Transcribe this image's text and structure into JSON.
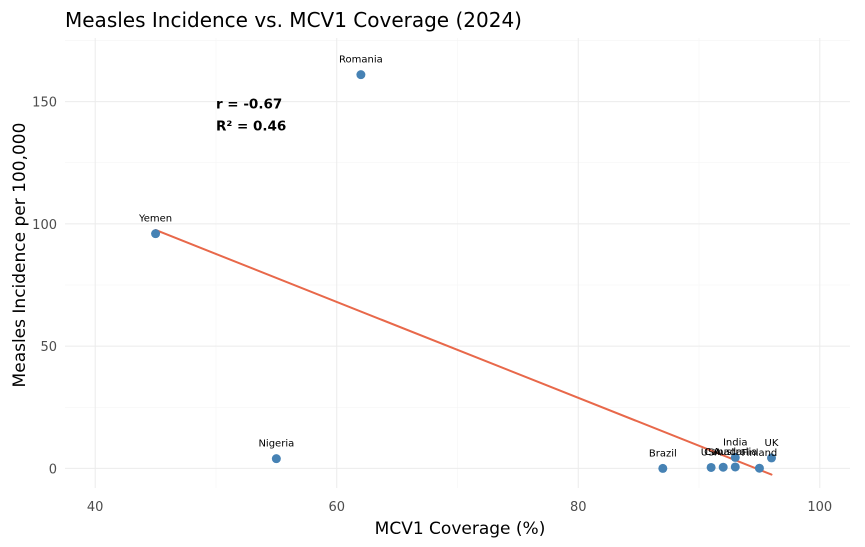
{
  "chart_data": {
    "type": "scatter",
    "title": "Measles Incidence vs. MCV1 Coverage (2024)",
    "xlabel": "MCV1 Coverage (%)",
    "ylabel": "Measles Incidence per 100,000",
    "xlim": [
      37.5,
      102.5
    ],
    "ylim": [
      -8,
      176
    ],
    "x_ticks": [
      40,
      60,
      80,
      100
    ],
    "y_ticks": [
      0,
      50,
      100,
      150
    ],
    "grid": true,
    "points": [
      {
        "label": "Romania",
        "x": 62,
        "y": 161
      },
      {
        "label": "Yemen",
        "x": 45,
        "y": 96
      },
      {
        "label": "Nigeria",
        "x": 55,
        "y": 4
      },
      {
        "label": "Brazil",
        "x": 87,
        "y": 0
      },
      {
        "label": "USA",
        "x": 91,
        "y": 0.4
      },
      {
        "label": "Canada",
        "x": 92,
        "y": 0.5
      },
      {
        "label": "Australia",
        "x": 93,
        "y": 0.6
      },
      {
        "label": "India",
        "x": 93,
        "y": 4.5
      },
      {
        "label": "Finland",
        "x": 95,
        "y": 0.1
      },
      {
        "label": "UK",
        "x": 96,
        "y": 4.3
      }
    ],
    "trendline": {
      "x": [
        45,
        96
      ],
      "y": [
        97.5,
        -2.5
      ]
    },
    "annotations": [
      "r = -0.67",
      "R² = 0.46"
    ],
    "colors": {
      "point": "#4682b4",
      "trendline": "#e8684a"
    }
  }
}
